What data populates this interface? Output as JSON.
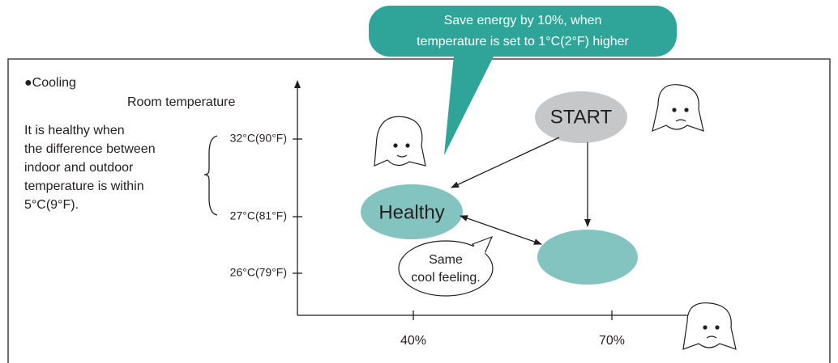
{
  "callout": [
    "Save energy by 10%, when",
    "temperature is set to 1°C(2°F) higher"
  ],
  "mode": "●Cooling",
  "y_axis_label": "Room temperature",
  "note": [
    "It is healthy when",
    "the difference between",
    "indoor and outdoor",
    "temperature is within",
    "5°C(9°F)."
  ],
  "y_ticks": [
    "32°C(90°F)",
    "27°C(81°F)",
    "26°C(79°F)"
  ],
  "x_ticks": [
    "40%",
    "70%"
  ],
  "nodes": {
    "start": "START",
    "healthy": "Healthy"
  },
  "speech": [
    "Same",
    "cool feeling."
  ]
}
